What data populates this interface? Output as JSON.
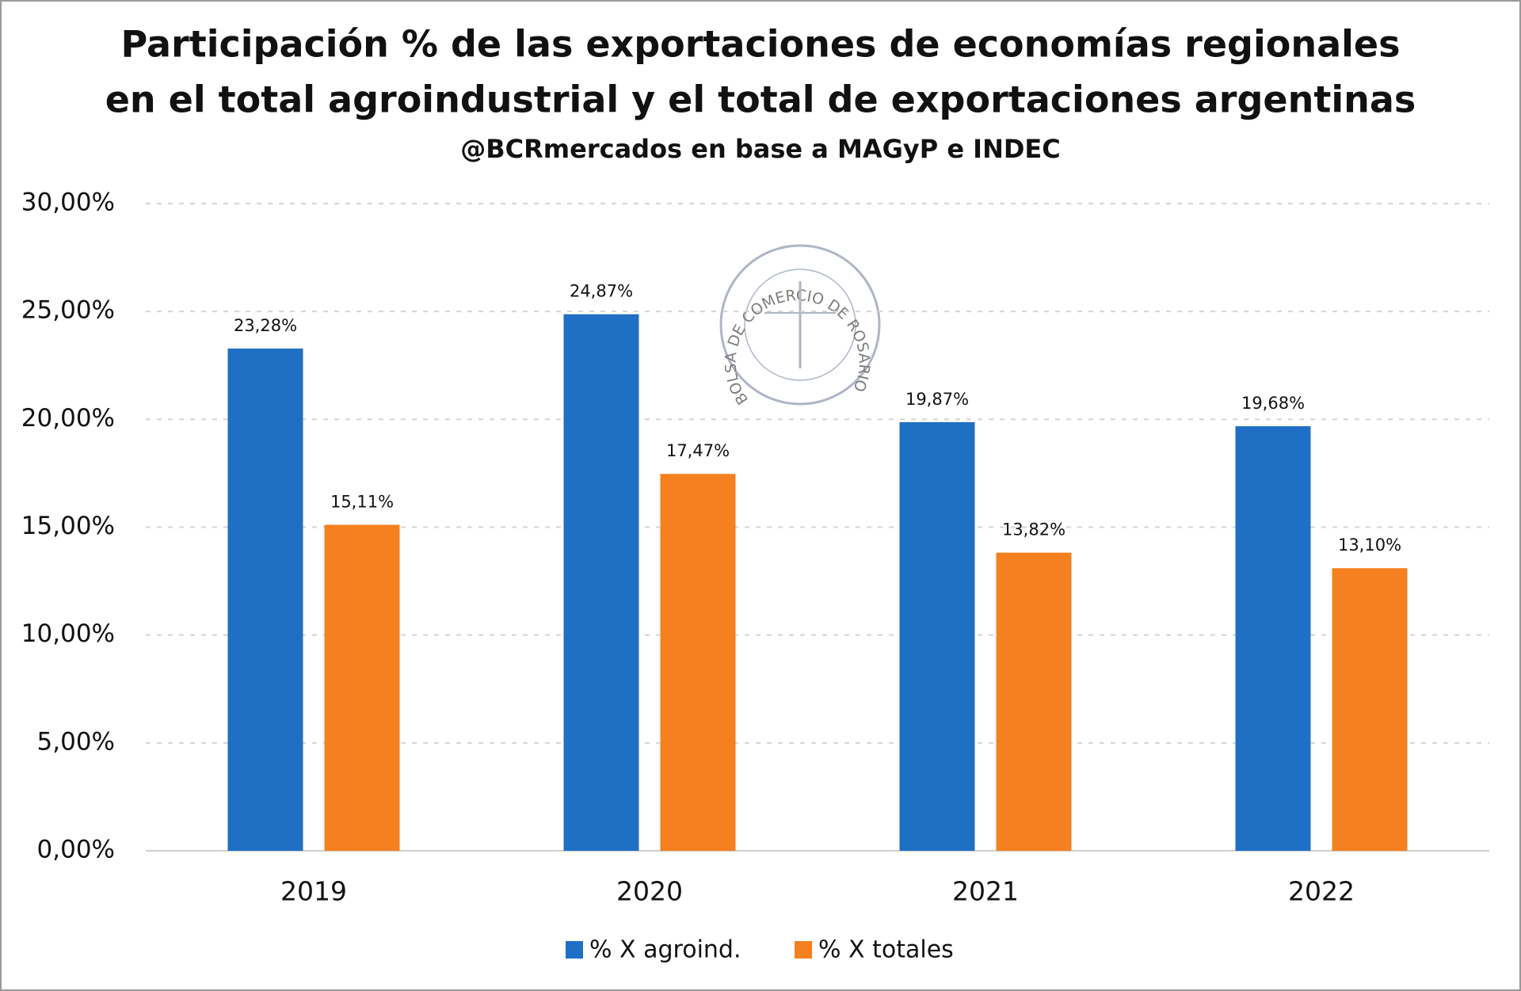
{
  "chart_data": {
    "type": "bar",
    "title": [
      "Participación % de las exportaciones de economías regionales",
      "en el total agroindustrial y el total de exportaciones argentinas"
    ],
    "subtitle": "@BCRmercados en base a MAGyP e INDEC",
    "watermark": "BOLSA DE COMERCIO DE ROSARIO",
    "categories": [
      "2019",
      "2020",
      "2021",
      "2022"
    ],
    "series": [
      {
        "name": "% X agroind.",
        "color": "#1f6fc5",
        "values": [
          23.28,
          24.87,
          19.87,
          19.68
        ],
        "value_labels": [
          "23,28%",
          "24,87%",
          "19,87%",
          "19,68%"
        ]
      },
      {
        "name": "% X totales",
        "color": "#f5801f",
        "values": [
          15.11,
          17.47,
          13.82,
          13.1
        ],
        "value_labels": [
          "15,11%",
          "17,47%",
          "13,82%",
          "13,10%"
        ]
      }
    ],
    "ylim": [
      0,
      30
    ],
    "yticks": [
      {
        "value": 0,
        "label": "0,00%"
      },
      {
        "value": 5,
        "label": "5,00%"
      },
      {
        "value": 10,
        "label": "10,00%"
      },
      {
        "value": 15,
        "label": "15,00%"
      },
      {
        "value": 20,
        "label": "20,00%"
      },
      {
        "value": 25,
        "label": "25,00%"
      },
      {
        "value": 30,
        "label": "30,00%"
      }
    ],
    "grid": true,
    "legend": "bottom"
  }
}
